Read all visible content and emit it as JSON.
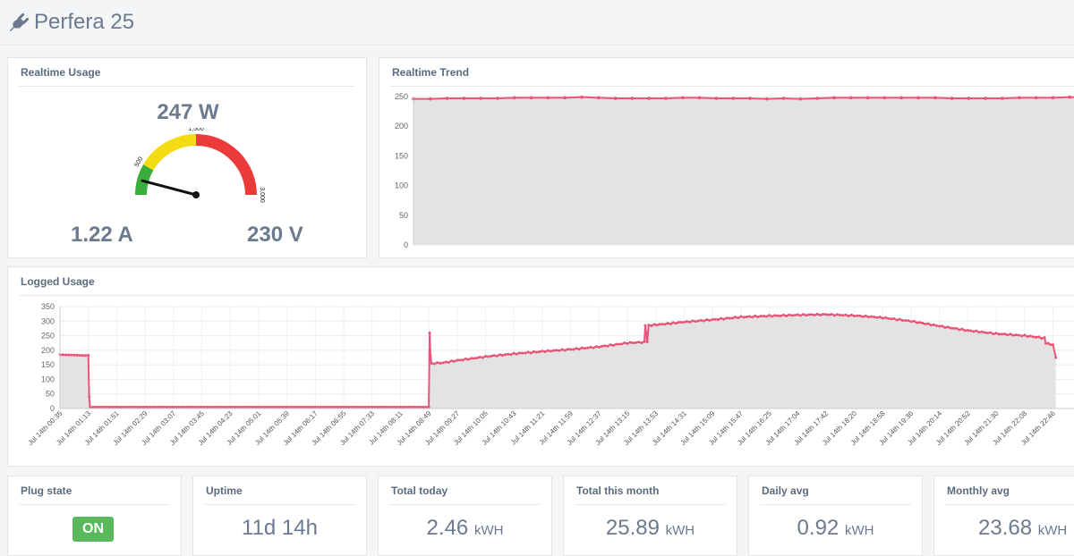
{
  "app": {
    "title": "Perfera 25"
  },
  "realtime_usage": {
    "title": "Realtime Usage",
    "power": "247 W",
    "current": "1.22 A",
    "voltage": "230 V",
    "gauge": {
      "min": 0,
      "max": 3000,
      "value": 247,
      "labels": [
        "500",
        "1,500",
        "3,000"
      ],
      "bands": [
        {
          "from": 0,
          "to": 500,
          "color": "#3aae3a"
        },
        {
          "from": 500,
          "to": 1500,
          "color": "#f4dc14"
        },
        {
          "from": 1500,
          "to": 3000,
          "color": "#ea3a3a"
        }
      ]
    }
  },
  "realtime_trend": {
    "title": "Realtime Trend",
    "chart_data": {
      "type": "area",
      "y_ticks": [
        "250",
        "200",
        "150",
        "100",
        "50",
        "0"
      ],
      "ylim": [
        0,
        250
      ],
      "values": [
        246,
        246,
        247,
        247,
        247,
        247,
        248,
        248,
        248,
        248,
        249,
        248,
        247,
        247,
        247,
        247,
        248,
        248,
        247,
        247,
        247,
        246,
        247,
        246,
        247,
        248,
        248,
        248,
        248,
        248,
        248,
        248,
        247,
        247,
        247,
        247,
        248,
        248,
        248,
        249,
        248
      ],
      "color": "#e8557a"
    }
  },
  "logged_usage": {
    "title": "Logged Usage",
    "chart_data": {
      "type": "area",
      "y_ticks": [
        "350",
        "300",
        "250",
        "200",
        "150",
        "100",
        "50",
        "0"
      ],
      "ylim": [
        0,
        350
      ],
      "x_labels": [
        "Jul 14th 00:35",
        "Jul 14th 01:13",
        "Jul 14th 01:51",
        "Jul 14th 02:29",
        "Jul 14th 03:07",
        "Jul 14th 03:45",
        "Jul 14th 04:23",
        "Jul 14th 05:01",
        "Jul 14th 05:39",
        "Jul 14th 06:17",
        "Jul 14th 06:55",
        "Jul 14th 07:33",
        "Jul 14th 08:11",
        "Jul 14th 08:49",
        "Jul 14th 09:27",
        "Jul 14th 10:05",
        "Jul 14th 10:43",
        "Jul 14th 11:21",
        "Jul 14th 11:59",
        "Jul 14th 12:37",
        "Jul 14th 13:15",
        "Jul 14th 13:53",
        "Jul 14th 14:31",
        "Jul 14th 15:09",
        "Jul 14th 15:47",
        "Jul 14th 16:25",
        "Jul 14th 17:04",
        "Jul 14th 17:42",
        "Jul 14th 18:20",
        "Jul 14th 18:58",
        "Jul 14th 19:36",
        "Jul 14th 20:14",
        "Jul 14th 20:52",
        "Jul 14th 21:30",
        "Jul 14th 22:08",
        "Jul 14th 22:46"
      ],
      "series": [
        {
          "x": 0,
          "y": 185
        },
        {
          "x": 0.9,
          "y": 182
        },
        {
          "x": 1.0,
          "y": 183
        },
        {
          "x": 1.03,
          "y": 40
        },
        {
          "x": 1.06,
          "y": 5
        },
        {
          "x": 13.0,
          "y": 5
        },
        {
          "x": 13.03,
          "y": 260
        },
        {
          "x": 13.06,
          "y": 180
        },
        {
          "x": 13.1,
          "y": 155
        },
        {
          "x": 13.5,
          "y": 157
        },
        {
          "x": 14.0,
          "y": 165
        },
        {
          "x": 15.0,
          "y": 178
        },
        {
          "x": 16.0,
          "y": 188
        },
        {
          "x": 17.0,
          "y": 196
        },
        {
          "x": 18.0,
          "y": 203
        },
        {
          "x": 19.0,
          "y": 212
        },
        {
          "x": 20.0,
          "y": 225
        },
        {
          "x": 20.6,
          "y": 228
        },
        {
          "x": 20.63,
          "y": 285
        },
        {
          "x": 20.7,
          "y": 230
        },
        {
          "x": 20.75,
          "y": 285
        },
        {
          "x": 22.0,
          "y": 297
        },
        {
          "x": 23.0,
          "y": 305
        },
        {
          "x": 24.0,
          "y": 314
        },
        {
          "x": 25.0,
          "y": 318
        },
        {
          "x": 26.0,
          "y": 321
        },
        {
          "x": 27.0,
          "y": 323
        },
        {
          "x": 28.0,
          "y": 319
        },
        {
          "x": 29.0,
          "y": 312
        },
        {
          "x": 30.0,
          "y": 300
        },
        {
          "x": 31.0,
          "y": 283
        },
        {
          "x": 32.0,
          "y": 268
        },
        {
          "x": 33.0,
          "y": 257
        },
        {
          "x": 34.0,
          "y": 250
        },
        {
          "x": 34.7,
          "y": 242
        },
        {
          "x": 34.75,
          "y": 225
        },
        {
          "x": 35.0,
          "y": 218
        },
        {
          "x": 35.1,
          "y": 175
        }
      ],
      "color": "#e8557a"
    }
  },
  "stats": [
    {
      "title": "Plug state",
      "value": "ON",
      "unit": ""
    },
    {
      "title": "Uptime",
      "value": "11d 14h",
      "unit": ""
    },
    {
      "title": "Total today",
      "value": "2.46",
      "unit": "kWH"
    },
    {
      "title": "Total this month",
      "value": "25.89",
      "unit": "kWH"
    },
    {
      "title": "Daily avg",
      "value": "0.92",
      "unit": "kWH"
    },
    {
      "title": "Monthly avg",
      "value": "23.68",
      "unit": "kWH"
    }
  ]
}
